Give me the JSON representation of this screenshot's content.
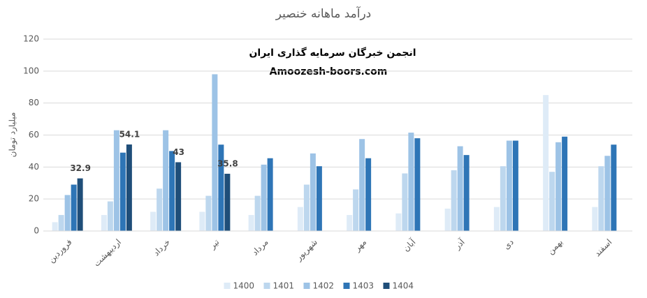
{
  "chart_data": {
    "type": "bar",
    "title": "درآمد ماهانه خنصیر",
    "annotations": [
      "انجمن خبرگان سرمایه گذاری ایران",
      "Amoozesh-boors.com"
    ],
    "y_label": "میلیارد تومان",
    "categories": [
      "فروردین",
      "اردیبهشت",
      "خرداد",
      "تیر",
      "مرداد",
      "شهریور",
      "مهر",
      "آبان",
      "آذر",
      "دی",
      "بهمن",
      "اسفند"
    ],
    "series": [
      {
        "name": "1400",
        "color": "#deebf7",
        "values": [
          5.5,
          10,
          12,
          12,
          10,
          15,
          10,
          11,
          14,
          15,
          85,
          15
        ]
      },
      {
        "name": "1401",
        "color": "#bdd7ee",
        "values": [
          10,
          18.5,
          26.5,
          22,
          22,
          29,
          26,
          36,
          38,
          40.5,
          37,
          40.5
        ]
      },
      {
        "name": "1402",
        "color": "#9dc3e6",
        "values": [
          22.5,
          63,
          63,
          98,
          41.5,
          48.5,
          57.5,
          61.5,
          53,
          56.5,
          55.5,
          47
        ]
      },
      {
        "name": "1403",
        "color": "#2e75b6",
        "values": [
          29,
          49,
          50,
          54,
          45.5,
          40.5,
          45.5,
          58,
          47.5,
          56.5,
          59,
          54
        ]
      },
      {
        "name": "1404",
        "color": "#1f4e79",
        "values": [
          32.9,
          54.1,
          43,
          35.8,
          null,
          null,
          null,
          null,
          null,
          null,
          null,
          null
        ],
        "show_labels": true
      }
    ],
    "ylim": [
      0,
      120
    ],
    "yticks": [
      0,
      20,
      40,
      60,
      80,
      100,
      120
    ],
    "grid": true,
    "legend": "bottom"
  }
}
